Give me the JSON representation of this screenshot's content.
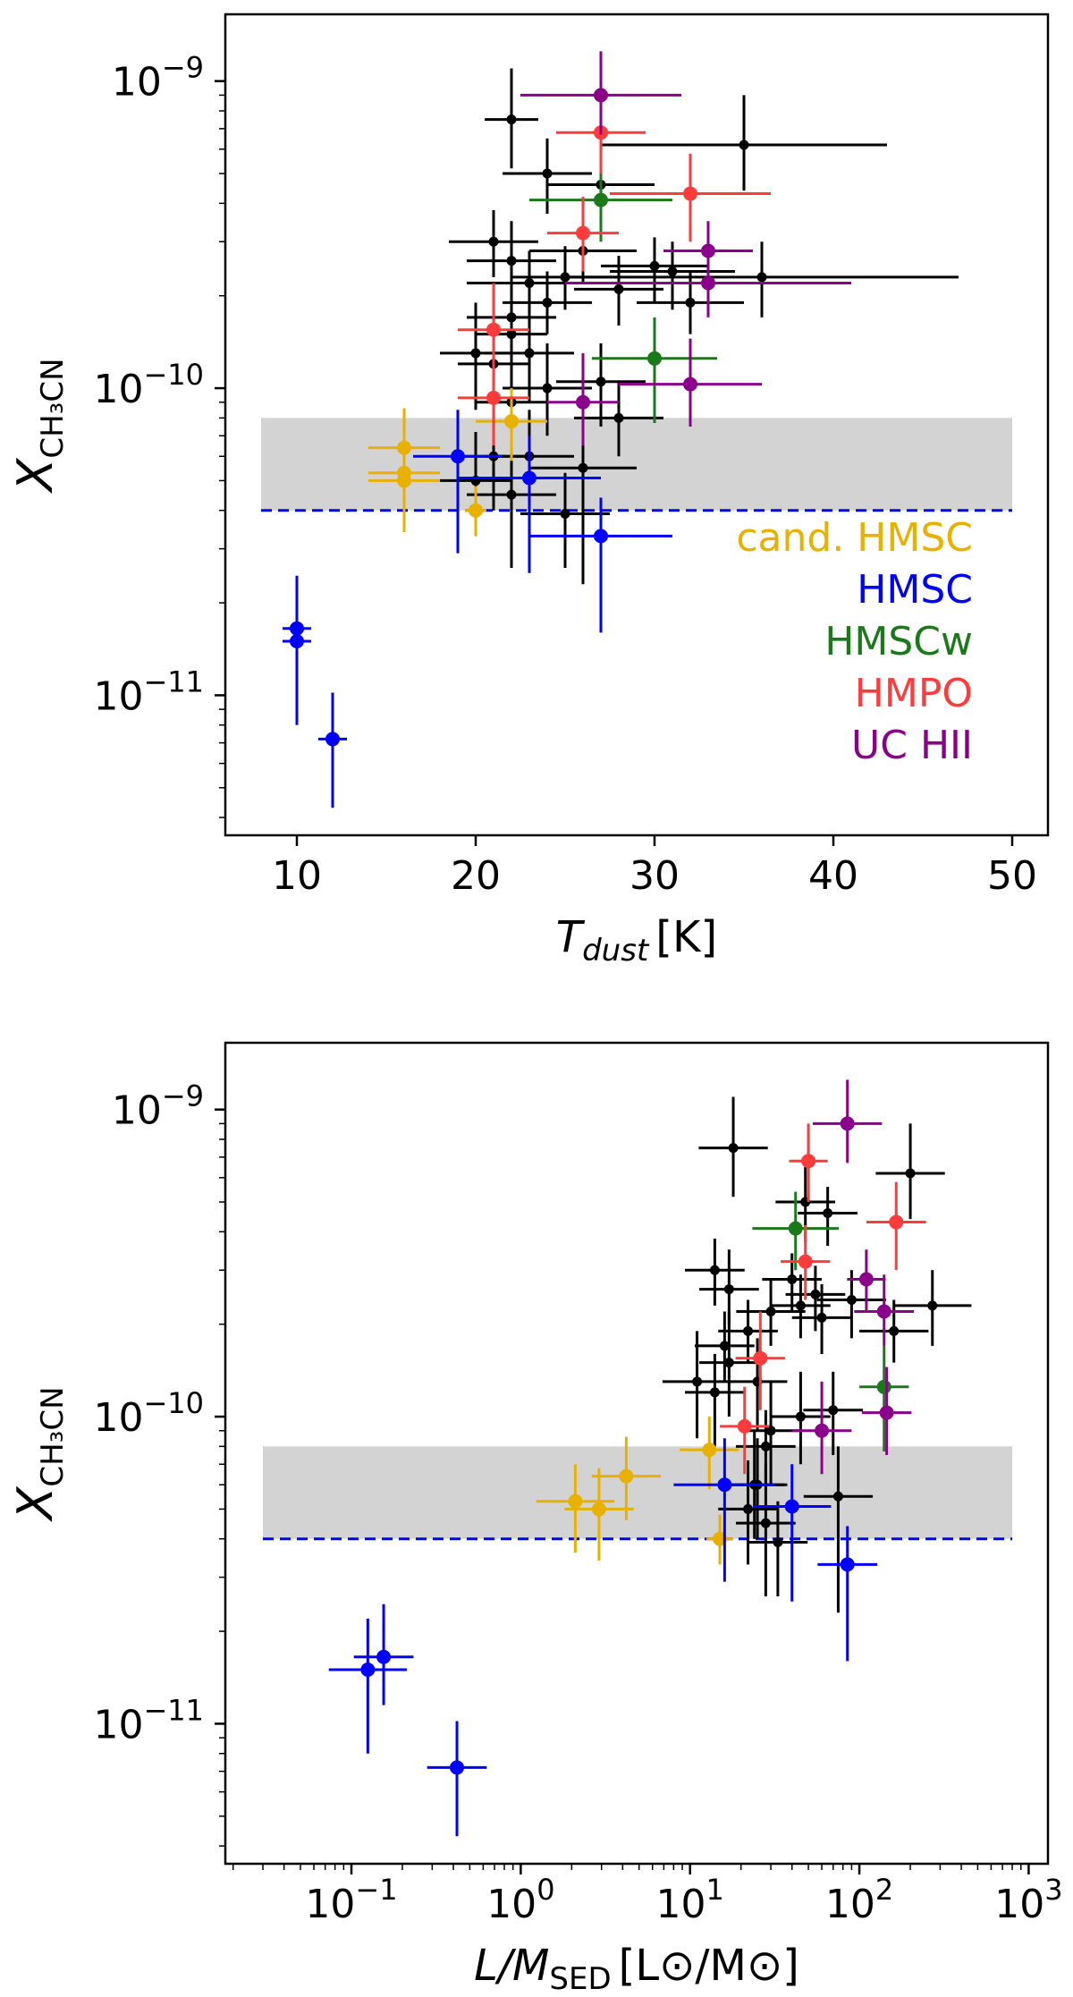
{
  "colors": {
    "cand_hmsc": "#e8b100",
    "hmsc": "#0000ff",
    "hmscw": "#1a7a1a",
    "hmpo": "#ff3b3b",
    "uchii": "#8b008b",
    "other": "#000000",
    "band": "#d3d3d3",
    "dashed": "#0000ff"
  },
  "chart_data": [
    {
      "type": "scatter",
      "xscale": "linear",
      "yscale": "log",
      "xlim": [
        6,
        52
      ],
      "ylim": [
        3.5e-12,
        1.65e-09
      ],
      "xticks": [
        10,
        20,
        30,
        40,
        50
      ],
      "xtick_labels": [
        "10",
        "20",
        "30",
        "40",
        "50"
      ],
      "yticks": [
        1e-11,
        1e-10,
        1e-09
      ],
      "ytick_mantissa": [
        "10",
        "10",
        "10"
      ],
      "ytick_exponent": [
        "−11",
        "−10",
        "−9"
      ],
      "xlabel_main": "T",
      "xlabel_sub": "dust",
      "xlabel_unit": "[K]",
      "ylabel_main": "X",
      "ylabel_sub": "CH₃CN",
      "band": {
        "x_from": 8,
        "x_to": 50,
        "y_from": 4e-11,
        "y_to": 8e-11
      },
      "dashed_line": {
        "x_from": 8,
        "x_to": 50,
        "y": 4e-11
      },
      "legend": [
        {
          "label": "cand. HMSC",
          "key": "cand_hmsc"
        },
        {
          "label": "HMSC",
          "key": "hmsc"
        },
        {
          "label": "HMSCw",
          "key": "hmscw"
        },
        {
          "label": "HMPO",
          "key": "hmpo"
        },
        {
          "label": "UC HII",
          "key": "uchii"
        }
      ],
      "series": [
        {
          "name": "other",
          "color_key": "other",
          "points": [
            [
              22,
              7.5e-10,
              1.5,
              1.1e-09,
              5.2e-10
            ],
            [
              24,
              5e-10,
              2.5,
              6.5e-10,
              3.7e-10
            ],
            [
              27,
              4.6e-10,
              3,
              5.6e-10,
              3.6e-10
            ],
            [
              35,
              6.2e-10,
              8,
              9e-10,
              4.4e-10
            ],
            [
              21,
              3e-10,
              2.5,
              3.8e-10,
              2.3e-10
            ],
            [
              22,
              2.6e-10,
              2.5,
              3.5e-10,
              2e-10
            ],
            [
              23,
              2.2e-10,
              3.5,
              2.8e-10,
              1.7e-10
            ],
            [
              25,
              2.3e-10,
              3,
              2.9e-10,
              1.8e-10
            ],
            [
              28,
              2.1e-10,
              2.5,
              2.7e-10,
              1.6e-10
            ],
            [
              26,
              2.8e-10,
              3,
              3.4e-10,
              2.2e-10
            ],
            [
              30,
              2.5e-10,
              3,
              3.1e-10,
              1.9e-10
            ],
            [
              31,
              2.4e-10,
              3.5,
              3e-10,
              1.8e-10
            ],
            [
              32,
              1.9e-10,
              3,
              2.4e-10,
              1.5e-10
            ],
            [
              36,
              2.3e-10,
              11,
              3e-10,
              1.7e-10
            ],
            [
              24,
              1.9e-10,
              2.5,
              2.4e-10,
              1.5e-10
            ],
            [
              22,
              1.7e-10,
              2.5,
              2.2e-10,
              1.3e-10
            ],
            [
              20,
              1.3e-10,
              2,
              1.9e-10,
              8.5e-11
            ],
            [
              22,
              1.5e-10,
              2,
              2.2e-10,
              1e-10
            ],
            [
              23,
              1.3e-10,
              2.5,
              1.8e-10,
              9e-11
            ],
            [
              21,
              1.2e-10,
              2,
              1.6e-10,
              8e-11
            ],
            [
              22,
              9e-11,
              2,
              1.3e-10,
              6e-11
            ],
            [
              24,
              1e-10,
              2.5,
              1.4e-10,
              7e-11
            ],
            [
              27,
              1.05e-10,
              2.5,
              1.4e-10,
              7.5e-11
            ],
            [
              28,
              8e-11,
              2.5,
              1.05e-10,
              6e-11
            ],
            [
              21,
              6e-11,
              2,
              9e-11,
              4e-11
            ],
            [
              22,
              4.5e-11,
              2.5,
              7e-11,
              2.6e-11
            ],
            [
              20,
              5e-11,
              2,
              7.2e-11,
              3.3e-11
            ],
            [
              23,
              6e-11,
              2.5,
              8.5e-11,
              4e-11
            ],
            [
              26,
              5.5e-11,
              3,
              8e-11,
              2.3e-11
            ],
            [
              25,
              3.9e-11,
              2.5,
              5.3e-11,
              2.6e-11
            ]
          ]
        },
        {
          "name": "cand. HMSC",
          "color_key": "cand_hmsc",
          "points": [
            [
              16,
              6.4e-11,
              2,
              8.6e-11,
              4.6e-11
            ],
            [
              16,
              5.3e-11,
              2,
              7e-11,
              3.6e-11
            ],
            [
              16,
              5e-11,
              2,
              6.8e-11,
              3.4e-11
            ],
            [
              20,
              4e-11,
              0.6,
              4.8e-11,
              3.3e-11
            ],
            [
              22,
              7.8e-11,
              2,
              1e-10,
              5.8e-11
            ]
          ]
        },
        {
          "name": "HMSC",
          "color_key": "hmsc",
          "points": [
            [
              10,
              1.65e-11,
              0.8,
              2.45e-11,
              1.15e-11
            ],
            [
              10,
              1.5e-11,
              0.8,
              2.2e-11,
              8e-12
            ],
            [
              12,
              7.2e-12,
              0.8,
              1.02e-11,
              4.3e-12
            ],
            [
              19,
              6e-11,
              2.5,
              8.5e-11,
              2.9e-11
            ],
            [
              23,
              5.1e-11,
              4,
              7e-11,
              2.5e-11
            ],
            [
              27,
              3.3e-11,
              4,
              4.4e-11,
              1.6e-11
            ]
          ]
        },
        {
          "name": "HMSCw",
          "color_key": "hmscw",
          "points": [
            [
              27,
              4.1e-10,
              4,
              5.4e-10,
              3e-10
            ],
            [
              30,
              1.25e-10,
              3.5,
              1.7e-10,
              7.7e-11
            ]
          ]
        },
        {
          "name": "HMPO",
          "color_key": "hmpo",
          "points": [
            [
              27,
              6.8e-10,
              2.5,
              9e-10,
              5e-10
            ],
            [
              32,
              4.3e-10,
              4.5,
              5.8e-10,
              3e-10
            ],
            [
              26,
              3.2e-10,
              2,
              4.2e-10,
              2.4e-10
            ],
            [
              21,
              1.55e-10,
              2,
              2.2e-10,
              1.05e-10
            ],
            [
              21,
              9.3e-11,
              2,
              1.25e-10,
              6.5e-11
            ]
          ]
        },
        {
          "name": "UC HII",
          "color_key": "uchii",
          "points": [
            [
              27,
              9e-10,
              4.5,
              1.25e-09,
              6.7e-10
            ],
            [
              33,
              2.8e-10,
              2.5,
              3.5e-10,
              2.2e-10
            ],
            [
              33,
              2.2e-10,
              8,
              2.9e-10,
              1.7e-10
            ],
            [
              32,
              1.03e-10,
              4,
              1.45e-10,
              7.5e-11
            ],
            [
              26,
              9e-11,
              2,
              1.3e-10,
              6.5e-11
            ]
          ]
        }
      ]
    },
    {
      "type": "scatter",
      "xscale": "log",
      "yscale": "log",
      "xlim": [
        0.018,
        1300
      ],
      "ylim": [
        3.5e-12,
        1.65e-09
      ],
      "xticks": [
        0.1,
        1,
        10,
        100,
        1000
      ],
      "xtick_mantissa": [
        "10",
        "10",
        "10",
        "10",
        "10"
      ],
      "xtick_exponent": [
        "−1",
        "0",
        "1",
        "2",
        "3"
      ],
      "yticks": [
        1e-11,
        1e-10,
        1e-09
      ],
      "ytick_mantissa": [
        "10",
        "10",
        "10"
      ],
      "ytick_exponent": [
        "−11",
        "−10",
        "−9"
      ],
      "xlabel_main": "L/M",
      "xlabel_sub": "SED",
      "xlabel_unit": "[L⊙/M⊙]",
      "ylabel_main": "X",
      "ylabel_sub": "CH₃CN",
      "band": {
        "x_from": 0.03,
        "x_to": 800,
        "y_from": 4e-11,
        "y_to": 8e-11
      },
      "dashed_line": {
        "x_from": 0.03,
        "x_to": 800,
        "y": 4e-11
      },
      "series": [
        {
          "name": "other",
          "color_key": "other",
          "points": [
            [
              18,
              7.5e-10,
              1.6,
              1.1e-09,
              5.2e-10
            ],
            [
              48,
              5e-10,
              1.5,
              6.5e-10,
              3.7e-10
            ],
            [
              65,
              4.6e-10,
              1.5,
              5.6e-10,
              3.6e-10
            ],
            [
              200,
              6.2e-10,
              1.6,
              9e-10,
              4.4e-10
            ],
            [
              14,
              3e-10,
              1.5,
              3.8e-10,
              2.3e-10
            ],
            [
              17,
              2.6e-10,
              1.5,
              3.5e-10,
              2e-10
            ],
            [
              30,
              2.2e-10,
              1.6,
              2.8e-10,
              1.7e-10
            ],
            [
              45,
              2.3e-10,
              1.5,
              2.9e-10,
              1.8e-10
            ],
            [
              60,
              2.1e-10,
              1.5,
              2.7e-10,
              1.6e-10
            ],
            [
              40,
              2.8e-10,
              1.5,
              3.4e-10,
              2.2e-10
            ],
            [
              55,
              2.5e-10,
              1.5,
              3.1e-10,
              1.9e-10
            ],
            [
              90,
              2.4e-10,
              1.6,
              3e-10,
              1.8e-10
            ],
            [
              160,
              1.9e-10,
              1.6,
              2.4e-10,
              1.5e-10
            ],
            [
              270,
              2.3e-10,
              1.7,
              3e-10,
              1.7e-10
            ],
            [
              22,
              1.9e-10,
              1.5,
              2.4e-10,
              1.5e-10
            ],
            [
              16,
              1.7e-10,
              1.5,
              2.2e-10,
              1.3e-10
            ],
            [
              11,
              1.3e-10,
              1.6,
              1.9e-10,
              8.5e-11
            ],
            [
              17,
              1.5e-10,
              1.5,
              2.2e-10,
              1e-10
            ],
            [
              25,
              1.3e-10,
              1.5,
              1.8e-10,
              9e-11
            ],
            [
              14,
              1.2e-10,
              1.5,
              1.6e-10,
              8e-11
            ],
            [
              30,
              9e-11,
              1.5,
              1.3e-10,
              6e-11
            ],
            [
              45,
              1e-10,
              1.5,
              1.4e-10,
              7e-11
            ],
            [
              70,
              1.05e-10,
              1.5,
              1.4e-10,
              7.5e-11
            ],
            [
              28,
              8e-11,
              1.5,
              1.05e-10,
              6e-11
            ],
            [
              24,
              6e-11,
              1.5,
              9e-11,
              4e-11
            ],
            [
              28,
              4.5e-11,
              1.5,
              7e-11,
              2.6e-11
            ],
            [
              22,
              5e-11,
              1.5,
              7.2e-11,
              3.3e-11
            ],
            [
              25,
              6e-11,
              1.5,
              8.5e-11,
              4e-11
            ],
            [
              75,
              5.5e-11,
              1.6,
              8e-11,
              2.3e-11
            ],
            [
              33,
              3.9e-11,
              1.5,
              5.3e-11,
              2.6e-11
            ]
          ]
        },
        {
          "name": "cand. HMSC",
          "color_key": "cand_hmsc",
          "points": [
            [
              4.2,
              6.4e-11,
              1.6,
              8.6e-11,
              4.6e-11
            ],
            [
              2.1,
              5.3e-11,
              1.7,
              7e-11,
              3.6e-11
            ],
            [
              2.9,
              5e-11,
              1.6,
              6.8e-11,
              3.4e-11
            ],
            [
              15,
              4e-11,
              1.2,
              4.8e-11,
              3.3e-11
            ],
            [
              13,
              7.8e-11,
              1.5,
              1e-10,
              5.8e-11
            ]
          ]
        },
        {
          "name": "HMSC",
          "color_key": "hmsc",
          "points": [
            [
              0.155,
              1.65e-11,
              1.5,
              2.45e-11,
              1.15e-11
            ],
            [
              0.125,
              1.5e-11,
              1.7,
              2.2e-11,
              8e-12
            ],
            [
              0.42,
              7.2e-12,
              1.5,
              1.02e-11,
              4.3e-12
            ],
            [
              16,
              6e-11,
              2,
              8.5e-11,
              2.9e-11
            ],
            [
              40,
              5.1e-11,
              1.7,
              7e-11,
              2.5e-11
            ],
            [
              85,
              3.3e-11,
              1.5,
              4.4e-11,
              1.6e-11
            ]
          ]
        },
        {
          "name": "HMSCw",
          "color_key": "hmscw",
          "points": [
            [
              42,
              4.1e-10,
              1.8,
              5.4e-10,
              3e-10
            ],
            [
              140,
              1.25e-10,
              1.4,
              1.7e-10,
              7.7e-11
            ]
          ]
        },
        {
          "name": "HMPO",
          "color_key": "hmpo",
          "points": [
            [
              50,
              6.8e-10,
              1.3,
              9e-10,
              5e-10
            ],
            [
              165,
              4.3e-10,
              1.5,
              5.8e-10,
              3e-10
            ],
            [
              48,
              3.2e-10,
              1.4,
              4.2e-10,
              2.4e-10
            ],
            [
              26,
              1.55e-10,
              1.4,
              2.2e-10,
              1.05e-10
            ],
            [
              21,
              9.3e-11,
              1.4,
              1.25e-10,
              6.5e-11
            ]
          ]
        },
        {
          "name": "UC HII",
          "color_key": "uchii",
          "points": [
            [
              85,
              9e-10,
              1.6,
              1.25e-09,
              6.7e-10
            ],
            [
              110,
              2.8e-10,
              1.3,
              3.5e-10,
              2.2e-10
            ],
            [
              140,
              2.2e-10,
              1.5,
              2.9e-10,
              1.7e-10
            ],
            [
              145,
              1.03e-10,
              1.4,
              1.45e-10,
              7.5e-11
            ],
            [
              60,
              9e-11,
              1.5,
              1.3e-10,
              6.5e-11
            ]
          ]
        }
      ]
    }
  ]
}
